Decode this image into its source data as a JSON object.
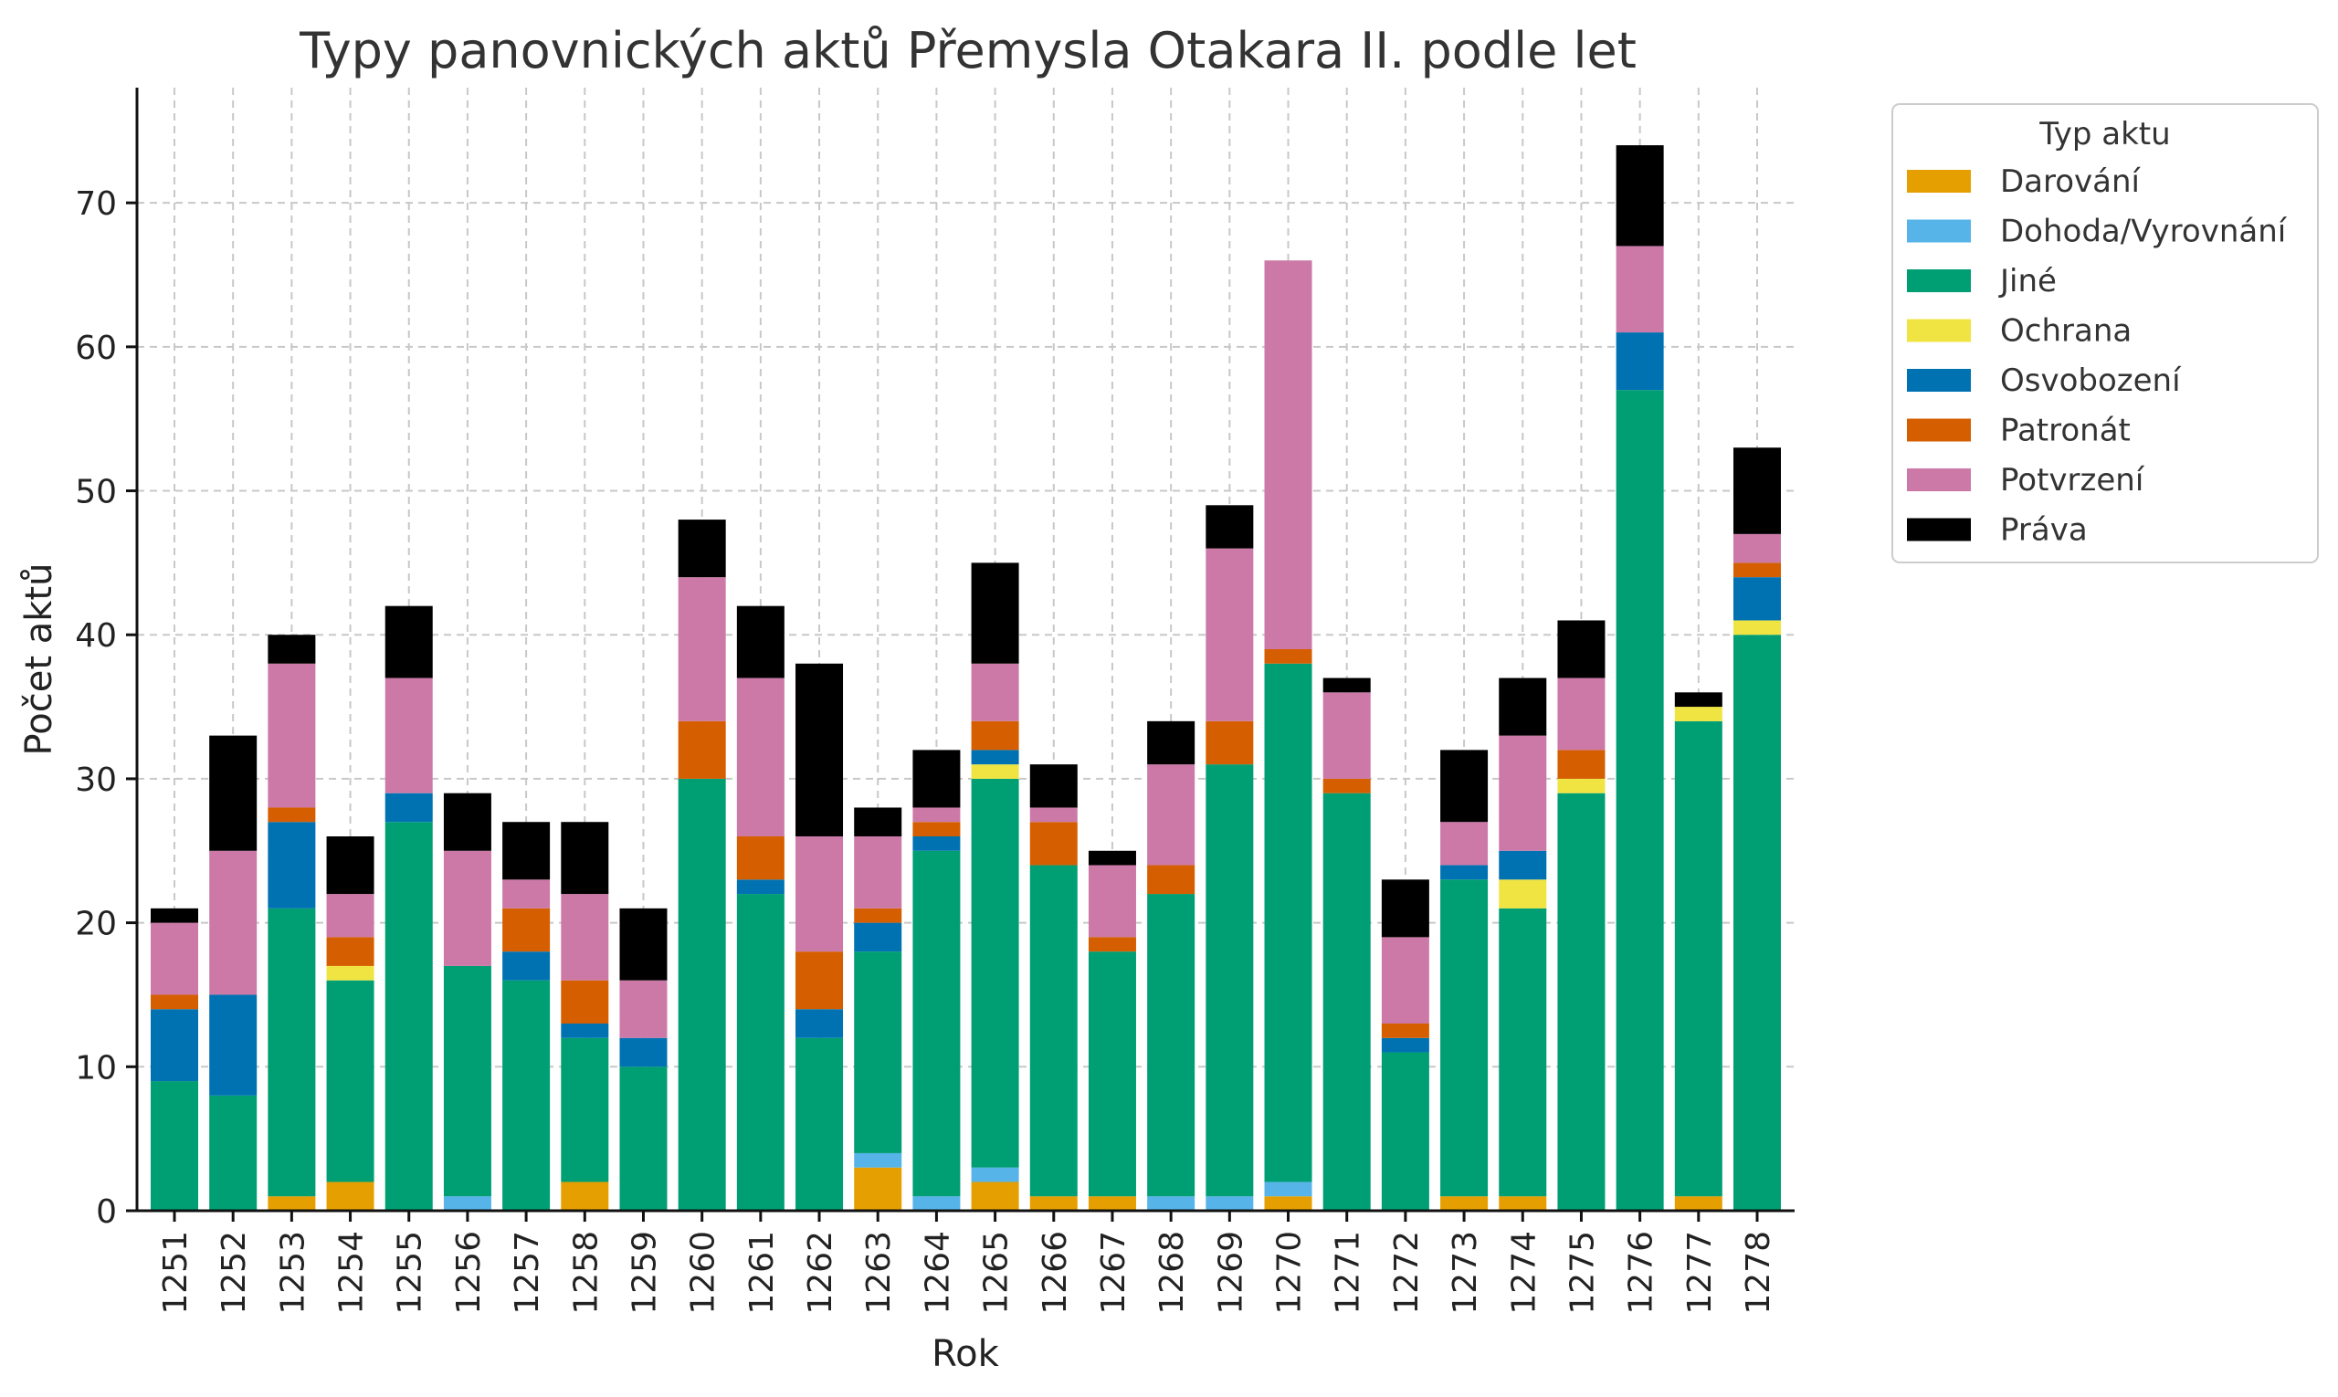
{
  "chart_data": {
    "type": "bar",
    "stacked": true,
    "title": "Typy panovnických aktů Přemysla Otakara II. podle let",
    "xlabel": "Rok",
    "ylabel": "Počet aktů",
    "ylim": [
      0,
      78
    ],
    "yticks": [
      0,
      10,
      20,
      30,
      40,
      50,
      60,
      70
    ],
    "grid": true,
    "legend": {
      "title": "Typ aktu",
      "placement": "outside-top-right"
    },
    "categories": [
      "1251",
      "1252",
      "1253",
      "1254",
      "1255",
      "1256",
      "1257",
      "1258",
      "1259",
      "1260",
      "1261",
      "1262",
      "1263",
      "1264",
      "1265",
      "1266",
      "1267",
      "1268",
      "1269",
      "1270",
      "1271",
      "1272",
      "1273",
      "1274",
      "1275",
      "1276",
      "1277",
      "1278"
    ],
    "series": [
      {
        "name": "Darování",
        "color": "#E69F00",
        "values": [
          0,
          0,
          1,
          2,
          0,
          0,
          0,
          2,
          0,
          0,
          0,
          0,
          3,
          0,
          2,
          1,
          1,
          0,
          0,
          1,
          0,
          0,
          1,
          1,
          0,
          0,
          1,
          0
        ]
      },
      {
        "name": "Dohoda/Vyrovnání",
        "color": "#56B4E9",
        "values": [
          0,
          0,
          0,
          0,
          0,
          1,
          0,
          0,
          0,
          0,
          0,
          0,
          1,
          1,
          1,
          0,
          0,
          1,
          1,
          1,
          0,
          0,
          0,
          0,
          0,
          0,
          0,
          0
        ]
      },
      {
        "name": "Jiné",
        "color": "#009E73",
        "values": [
          9,
          8,
          20,
          14,
          27,
          16,
          16,
          10,
          10,
          30,
          22,
          12,
          14,
          24,
          27,
          23,
          17,
          21,
          30,
          36,
          29,
          11,
          22,
          20,
          29,
          57,
          33,
          40
        ]
      },
      {
        "name": "Ochrana",
        "color": "#F0E442",
        "values": [
          0,
          0,
          0,
          1,
          0,
          0,
          0,
          0,
          0,
          0,
          0,
          0,
          0,
          0,
          1,
          0,
          0,
          0,
          0,
          0,
          0,
          0,
          0,
          2,
          1,
          0,
          1,
          1
        ]
      },
      {
        "name": "Osvobození",
        "color": "#0072B2",
        "values": [
          5,
          7,
          6,
          0,
          2,
          0,
          2,
          1,
          2,
          0,
          1,
          2,
          2,
          1,
          1,
          0,
          0,
          0,
          0,
          0,
          0,
          1,
          1,
          2,
          0,
          4,
          0,
          3
        ]
      },
      {
        "name": "Patronát",
        "color": "#D55E00",
        "values": [
          1,
          0,
          1,
          2,
          0,
          0,
          3,
          3,
          0,
          4,
          3,
          4,
          1,
          1,
          2,
          3,
          1,
          2,
          3,
          1,
          1,
          1,
          0,
          0,
          2,
          0,
          0,
          1
        ]
      },
      {
        "name": "Potvrzení",
        "color": "#CC79A7",
        "values": [
          5,
          10,
          10,
          3,
          8,
          8,
          2,
          6,
          4,
          10,
          11,
          8,
          5,
          1,
          4,
          1,
          5,
          7,
          12,
          27,
          6,
          6,
          3,
          8,
          5,
          6,
          0,
          2
        ]
      },
      {
        "name": "Práva",
        "color": "#000000",
        "values": [
          1,
          8,
          2,
          4,
          5,
          4,
          4,
          5,
          5,
          4,
          5,
          12,
          2,
          4,
          7,
          3,
          1,
          3,
          3,
          0,
          1,
          4,
          5,
          4,
          4,
          7,
          1,
          6
        ]
      }
    ]
  }
}
